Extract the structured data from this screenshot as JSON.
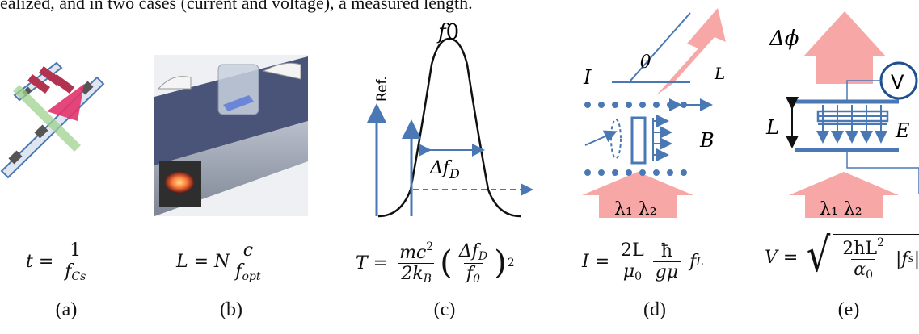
{
  "caption_fragment": "ealized, and in two cases (current and voltage), a measured length.",
  "panels": {
    "a": {
      "label": "(a)",
      "formula": {
        "lhs": "t",
        "num": "1",
        "den_var": "f",
        "den_sub": "Cs"
      }
    },
    "b": {
      "label": "(b)",
      "formula": {
        "lhs": "L",
        "coef": "N",
        "num": "c",
        "den_var": "f",
        "den_sub": "opt"
      }
    },
    "c": {
      "label": "(c)",
      "peak_label": "f",
      "peak_sub": "0",
      "ref_label": "Ref.",
      "width_label": "Δf",
      "width_sub": "D",
      "formula": {
        "lhs": "T",
        "num1": "mc",
        "num1_sup": "2",
        "den1": "2k",
        "den1_sub": "B",
        "num2": "Δf",
        "num2_sub": "D",
        "den2": "f",
        "den2_sub": "0",
        "exp": "2"
      }
    },
    "d": {
      "label": "(d)",
      "current_label": "I",
      "angle_label": "θ",
      "length_label": "L",
      "field_label": "B",
      "beam_label": "λ₁ λ₂",
      "formula": {
        "lhs": "I",
        "num1": "2L",
        "den1": "μ",
        "den1_sub": "0",
        "num2": "ħ",
        "den2": "gμ",
        "tail": "f",
        "tail_sub": "L"
      }
    },
    "e": {
      "label": "(e)",
      "phase_label": "Δϕ",
      "voltmeter_label": "V",
      "length_label": "L",
      "field_label": "E",
      "beam_label": "λ₁ λ₂",
      "formula": {
        "lhs": "V",
        "num": "2hL",
        "num_sup": "2",
        "den": "α",
        "den_sub": "0",
        "tail": "|f",
        "tail_sub": "s",
        "tail_end": "|"
      }
    }
  },
  "colors": {
    "blue": "#4a78b5",
    "pink": "#f7a8a6",
    "dark": "#111111"
  }
}
